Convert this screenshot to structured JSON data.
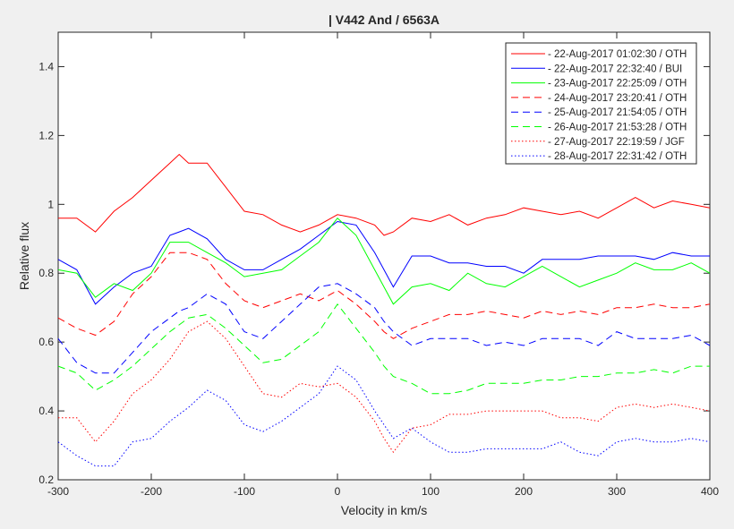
{
  "chart_data": {
    "type": "line",
    "title": "| V442 And / 6563A",
    "xlabel": "Velocity in km/s",
    "ylabel": "Relative flux",
    "xlim": [
      -300,
      400
    ],
    "ylim": [
      0.2,
      1.5
    ],
    "xticks": [
      -300,
      -200,
      -100,
      0,
      100,
      200,
      300,
      400
    ],
    "yticks": [
      0.2,
      0.4,
      0.6,
      0.8,
      1,
      1.2,
      1.4
    ],
    "xtick_labels": [
      "-300",
      "-200",
      "-100",
      "0",
      "100",
      "200",
      "300",
      "400"
    ],
    "ytick_labels": [
      "0.2",
      "0.4",
      "0.6",
      "0.8",
      "1",
      "1.2",
      "1.4"
    ],
    "grid": false,
    "legend_position": "top-right",
    "x": [
      -300,
      -280,
      -260,
      -240,
      -220,
      -200,
      -180,
      -170,
      -160,
      -140,
      -120,
      -100,
      -80,
      -60,
      -40,
      -20,
      0,
      20,
      40,
      50,
      60,
      80,
      100,
      120,
      140,
      160,
      180,
      200,
      220,
      240,
      260,
      280,
      300,
      320,
      340,
      360,
      380,
      400
    ],
    "series": [
      {
        "name": " - 22-Aug-2017 01:02:30 / OTH",
        "color": "#ff0000",
        "style": "solid",
        "values": [
          0.96,
          0.96,
          0.92,
          0.98,
          1.02,
          1.07,
          1.12,
          1.145,
          1.12,
          1.12,
          1.05,
          0.98,
          0.97,
          0.94,
          0.92,
          0.94,
          0.97,
          0.96,
          0.94,
          0.91,
          0.92,
          0.96,
          0.95,
          0.97,
          0.94,
          0.96,
          0.97,
          0.99,
          0.98,
          0.97,
          0.98,
          0.96,
          0.99,
          1.02,
          0.99,
          1.01,
          1.0,
          0.99
        ]
      },
      {
        "name": " - 22-Aug-2017 22:32:40 / BUI",
        "color": "#0000ff",
        "style": "solid",
        "values": [
          0.84,
          0.81,
          0.71,
          0.76,
          0.8,
          0.82,
          0.91,
          0.92,
          0.93,
          0.9,
          0.84,
          0.81,
          0.81,
          0.84,
          0.87,
          0.91,
          0.95,
          0.94,
          0.86,
          0.81,
          0.76,
          0.85,
          0.85,
          0.83,
          0.83,
          0.82,
          0.82,
          0.8,
          0.84,
          0.84,
          0.84,
          0.85,
          0.85,
          0.85,
          0.84,
          0.86,
          0.85,
          0.85
        ]
      },
      {
        "name": " - 23-Aug-2017 22:25:09 / OTH",
        "color": "#00ff00",
        "style": "solid",
        "values": [
          0.81,
          0.8,
          0.73,
          0.77,
          0.75,
          0.8,
          0.89,
          0.89,
          0.89,
          0.86,
          0.83,
          0.79,
          0.8,
          0.81,
          0.85,
          0.89,
          0.96,
          0.91,
          0.81,
          0.76,
          0.71,
          0.76,
          0.77,
          0.75,
          0.8,
          0.77,
          0.76,
          0.79,
          0.82,
          0.79,
          0.76,
          0.78,
          0.8,
          0.83,
          0.81,
          0.81,
          0.83,
          0.8
        ]
      },
      {
        "name": " - 24-Aug-2017 23:20:41 / OTH",
        "color": "#ff0000",
        "style": "dashed",
        "values": [
          0.67,
          0.64,
          0.62,
          0.66,
          0.74,
          0.79,
          0.86,
          0.86,
          0.86,
          0.84,
          0.77,
          0.72,
          0.7,
          0.72,
          0.74,
          0.72,
          0.75,
          0.71,
          0.66,
          0.63,
          0.61,
          0.64,
          0.66,
          0.68,
          0.68,
          0.69,
          0.68,
          0.67,
          0.69,
          0.68,
          0.69,
          0.68,
          0.7,
          0.7,
          0.71,
          0.7,
          0.7,
          0.71
        ]
      },
      {
        "name": " - 25-Aug-2017 21:54:05 / OTH",
        "color": "#0000ff",
        "style": "dashed",
        "values": [
          0.61,
          0.54,
          0.51,
          0.51,
          0.57,
          0.63,
          0.67,
          0.69,
          0.7,
          0.74,
          0.71,
          0.63,
          0.61,
          0.66,
          0.71,
          0.76,
          0.77,
          0.74,
          0.7,
          0.66,
          0.63,
          0.59,
          0.61,
          0.61,
          0.61,
          0.59,
          0.6,
          0.59,
          0.61,
          0.61,
          0.61,
          0.59,
          0.63,
          0.61,
          0.61,
          0.61,
          0.62,
          0.59
        ]
      },
      {
        "name": " - 26-Aug-2017 21:53:28 / OTH",
        "color": "#00ff00",
        "style": "dashed",
        "values": [
          0.53,
          0.51,
          0.46,
          0.49,
          0.53,
          0.58,
          0.63,
          0.65,
          0.67,
          0.68,
          0.64,
          0.59,
          0.54,
          0.55,
          0.59,
          0.63,
          0.71,
          0.64,
          0.57,
          0.53,
          0.5,
          0.48,
          0.45,
          0.45,
          0.46,
          0.48,
          0.48,
          0.48,
          0.49,
          0.49,
          0.5,
          0.5,
          0.51,
          0.51,
          0.52,
          0.51,
          0.53,
          0.53
        ]
      },
      {
        "name": " - 27-Aug-2017 22:19:59 / JGF",
        "color": "#ff0000",
        "style": "dotted",
        "values": [
          0.38,
          0.38,
          0.31,
          0.37,
          0.45,
          0.49,
          0.55,
          0.59,
          0.63,
          0.66,
          0.61,
          0.53,
          0.45,
          0.44,
          0.48,
          0.47,
          0.48,
          0.44,
          0.37,
          0.32,
          0.28,
          0.35,
          0.36,
          0.39,
          0.39,
          0.4,
          0.4,
          0.4,
          0.4,
          0.38,
          0.38,
          0.37,
          0.41,
          0.42,
          0.41,
          0.42,
          0.41,
          0.4
        ]
      },
      {
        "name": " - 28-Aug-2017 22:31:42 / OTH",
        "color": "#0000ff",
        "style": "dotted",
        "values": [
          0.31,
          0.27,
          0.24,
          0.24,
          0.31,
          0.32,
          0.37,
          0.39,
          0.41,
          0.46,
          0.43,
          0.36,
          0.34,
          0.37,
          0.41,
          0.45,
          0.53,
          0.49,
          0.4,
          0.36,
          0.32,
          0.35,
          0.31,
          0.28,
          0.28,
          0.29,
          0.29,
          0.29,
          0.29,
          0.31,
          0.28,
          0.27,
          0.31,
          0.32,
          0.31,
          0.31,
          0.32,
          0.31
        ]
      }
    ]
  }
}
